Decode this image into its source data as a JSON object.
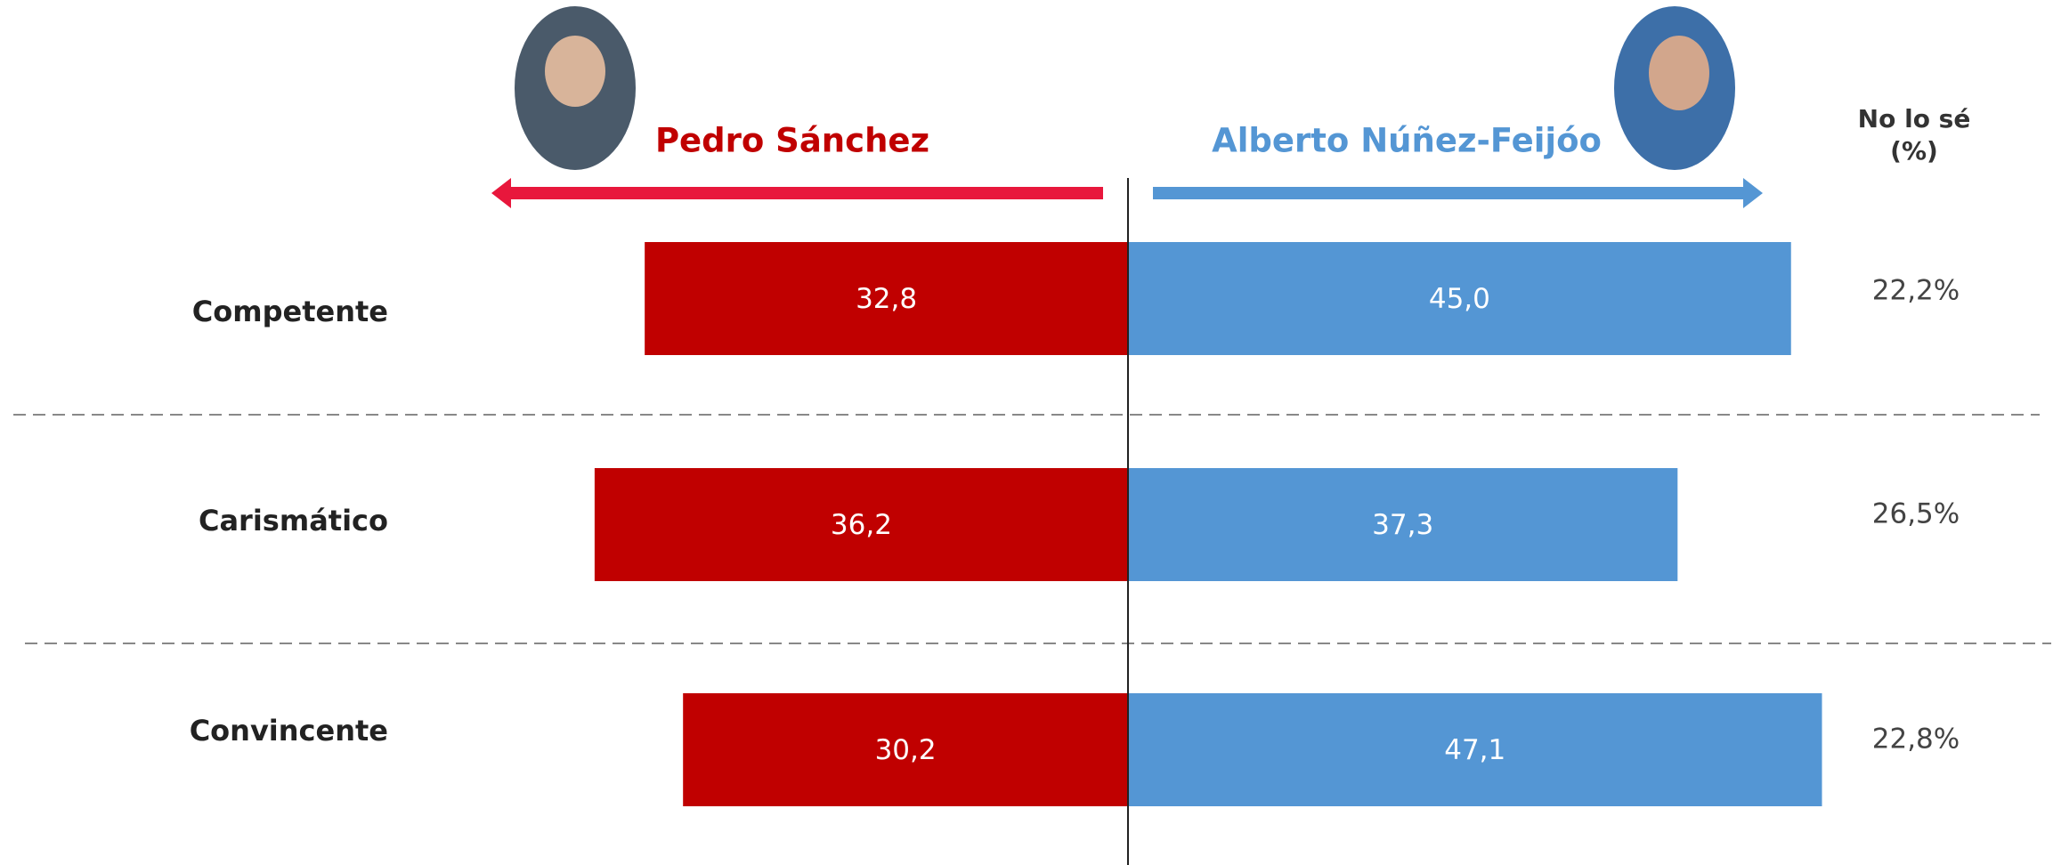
{
  "chart_data": {
    "type": "diverging_bar",
    "categories": [
      "Competente",
      "Carismático",
      "Convincente"
    ],
    "series": [
      {
        "name": "Pedro Sánchez",
        "color": "#c00000",
        "values": [
          32.8,
          36.2,
          30.2
        ],
        "value_labels": [
          "32,8",
          "36,2",
          "30,2"
        ]
      },
      {
        "name": "Alberto Núñez-Feijóo",
        "color": "#5496d4",
        "values": [
          45.0,
          37.3,
          47.1
        ],
        "value_labels": [
          "45,0",
          "37,3",
          "47,1"
        ]
      }
    ],
    "no_answer": {
      "title": "No lo sé (%)",
      "values": [
        22.2,
        26.5,
        22.8
      ],
      "value_labels": [
        "22,2%",
        "26,5%",
        "22,8%"
      ]
    }
  }
}
